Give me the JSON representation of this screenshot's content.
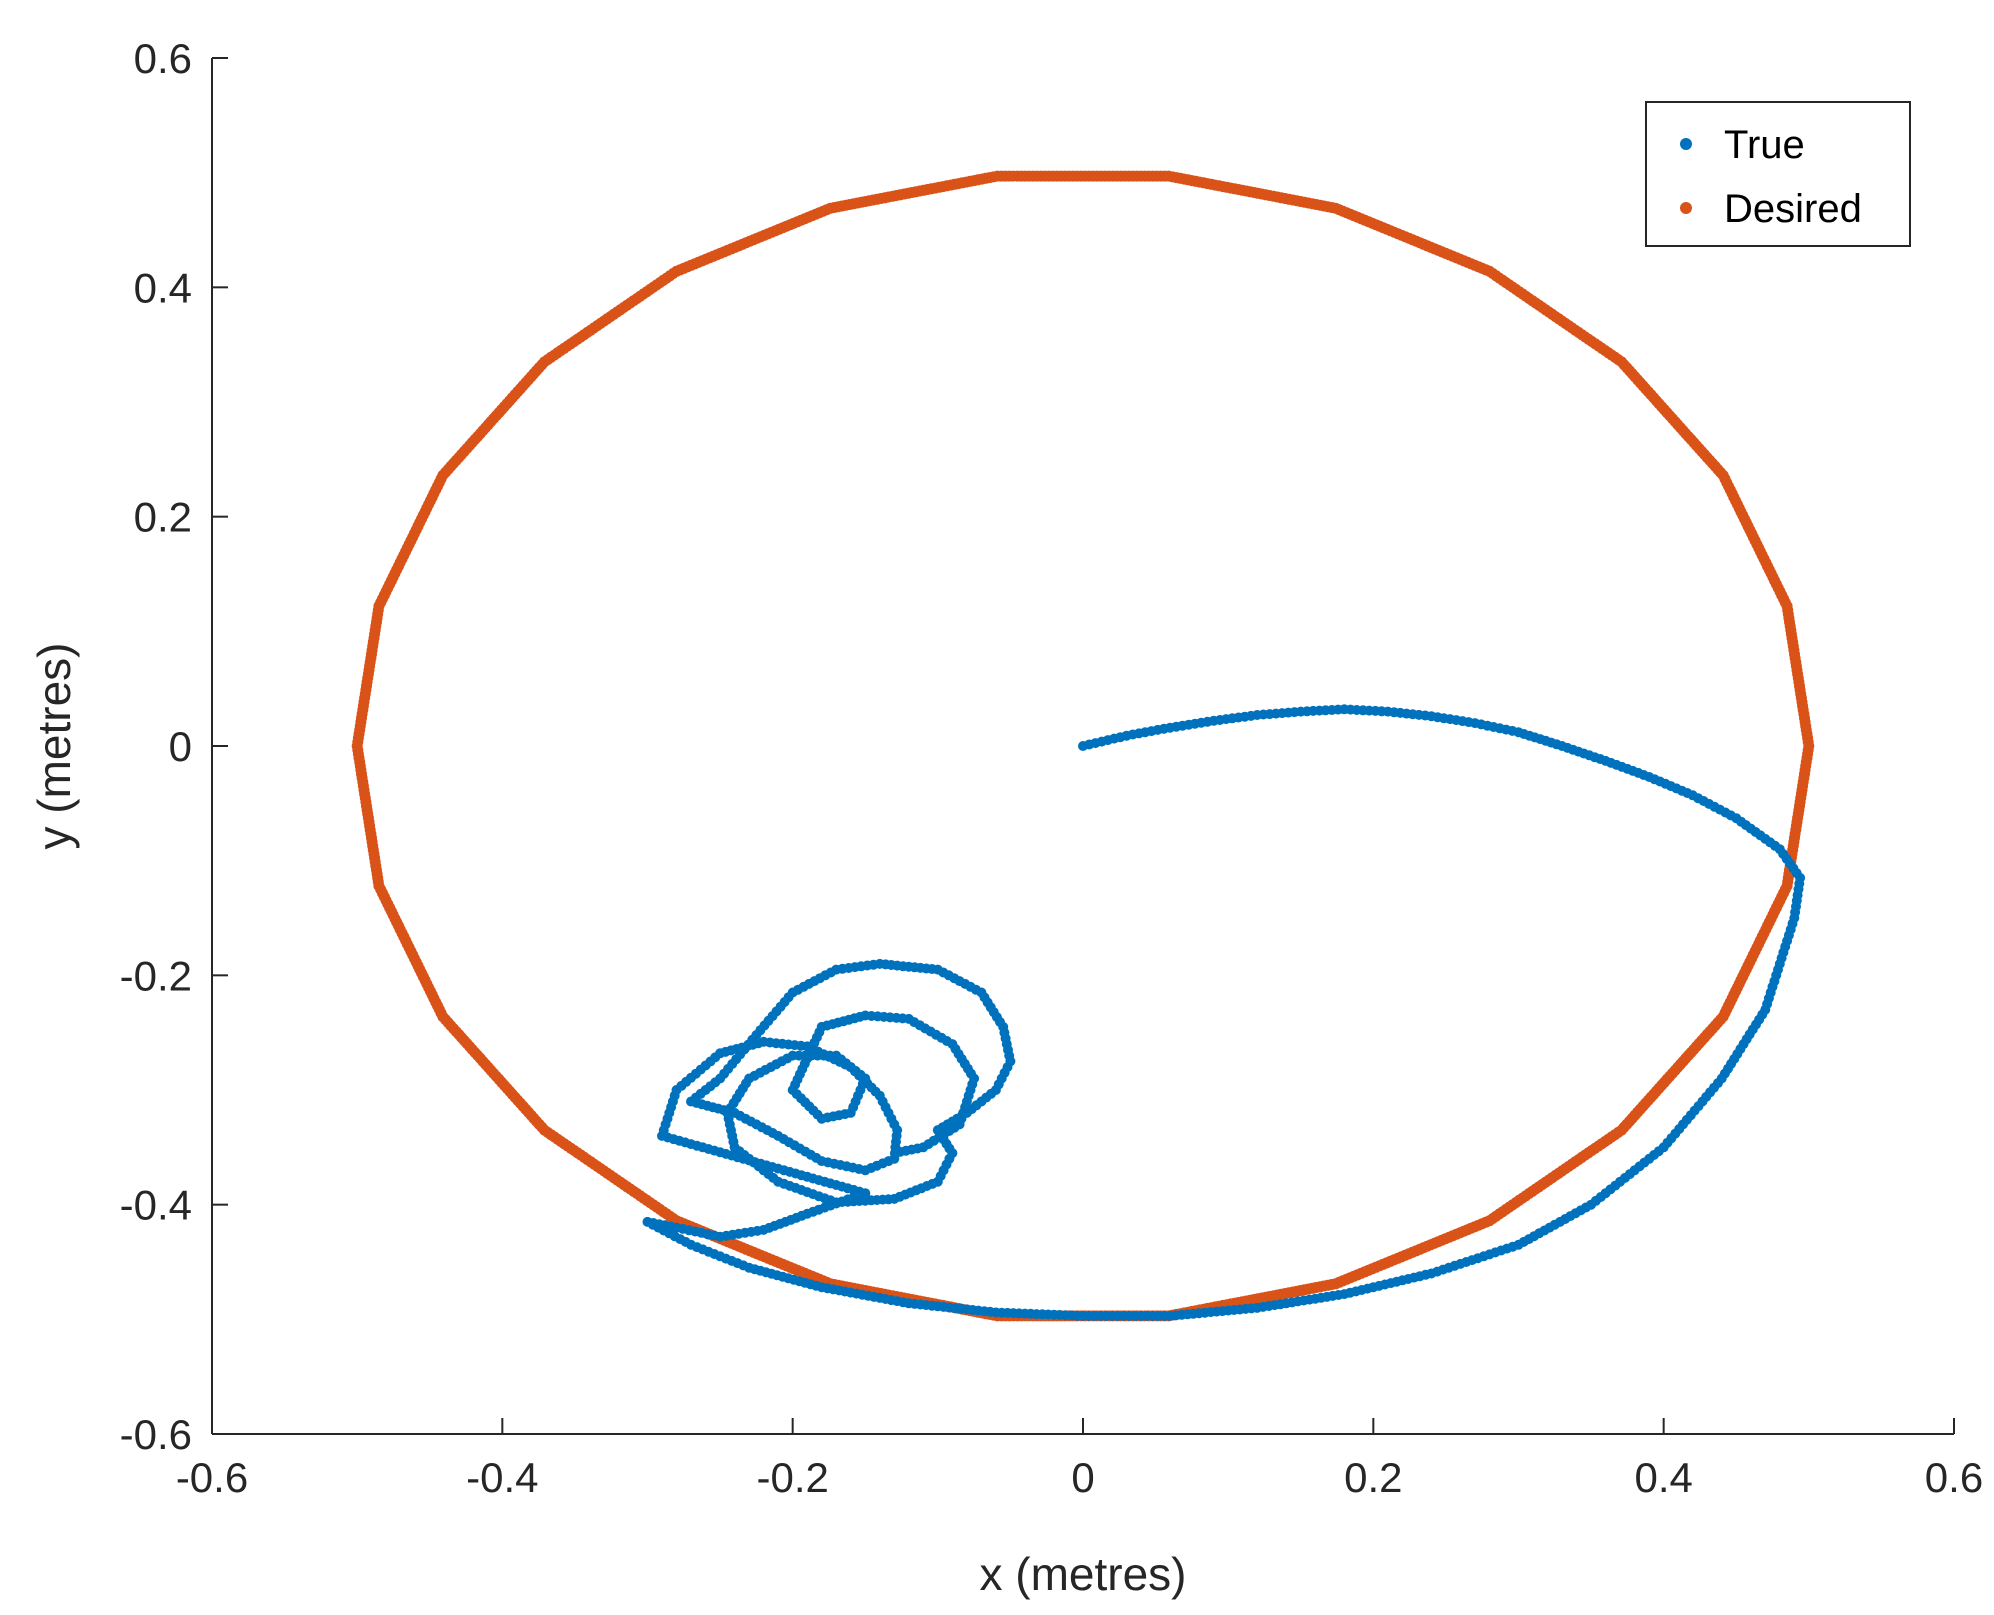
{
  "chart_data": {
    "type": "scatter",
    "title": "",
    "xlabel": "x (metres)",
    "ylabel": "y (metres)",
    "xlim": [
      -0.6,
      0.6
    ],
    "ylim": [
      -0.6,
      0.6
    ],
    "xticks": [
      -0.6,
      -0.4,
      -0.2,
      0,
      0.2,
      0.4,
      0.6
    ],
    "yticks": [
      -0.6,
      -0.4,
      -0.2,
      0,
      0.2,
      0.4,
      0.6
    ],
    "xtick_labels": [
      "-0.6",
      "-0.4",
      "-0.2",
      "0",
      "0.2",
      "0.4",
      "0.6"
    ],
    "ytick_labels": [
      "-0.6",
      "-0.4",
      "-0.2",
      "0",
      "0.2",
      "0.4",
      "0.6"
    ],
    "grid": false,
    "legend_position": "top-right",
    "series": [
      {
        "name": "True",
        "color": "#0072BD",
        "points": [
          [
            0.0,
            0.0
          ],
          [
            0.03,
            0.009
          ],
          [
            0.06,
            0.016
          ],
          [
            0.09,
            0.022
          ],
          [
            0.12,
            0.027
          ],
          [
            0.15,
            0.03
          ],
          [
            0.18,
            0.032
          ],
          [
            0.21,
            0.03
          ],
          [
            0.24,
            0.026
          ],
          [
            0.27,
            0.02
          ],
          [
            0.3,
            0.012
          ],
          [
            0.33,
            0.0
          ],
          [
            0.36,
            -0.013
          ],
          [
            0.39,
            -0.027
          ],
          [
            0.42,
            -0.043
          ],
          [
            0.45,
            -0.063
          ],
          [
            0.48,
            -0.09
          ],
          [
            0.494,
            -0.115
          ],
          [
            0.49,
            -0.15
          ],
          [
            0.47,
            -0.23
          ],
          [
            0.44,
            -0.29
          ],
          [
            0.4,
            -0.35
          ],
          [
            0.35,
            -0.4
          ],
          [
            0.3,
            -0.435
          ],
          [
            0.24,
            -0.46
          ],
          [
            0.18,
            -0.478
          ],
          [
            0.12,
            -0.49
          ],
          [
            0.06,
            -0.497
          ],
          [
            0.0,
            -0.497
          ],
          [
            -0.06,
            -0.494
          ],
          [
            -0.12,
            -0.486
          ],
          [
            -0.18,
            -0.472
          ],
          [
            -0.23,
            -0.455
          ],
          [
            -0.27,
            -0.435
          ],
          [
            -0.3,
            -0.415
          ],
          [
            -0.28,
            -0.42
          ],
          [
            -0.25,
            -0.428
          ],
          [
            -0.22,
            -0.422
          ],
          [
            -0.19,
            -0.408
          ],
          [
            -0.15,
            -0.39
          ],
          [
            -0.29,
            -0.34
          ],
          [
            -0.28,
            -0.3
          ],
          [
            -0.25,
            -0.268
          ],
          [
            -0.22,
            -0.258
          ],
          [
            -0.19,
            -0.262
          ],
          [
            -0.16,
            -0.28
          ],
          [
            -0.14,
            -0.305
          ],
          [
            -0.128,
            -0.335
          ],
          [
            -0.13,
            -0.36
          ],
          [
            -0.15,
            -0.37
          ],
          [
            -0.18,
            -0.362
          ],
          [
            -0.21,
            -0.34
          ],
          [
            -0.24,
            -0.32
          ],
          [
            -0.27,
            -0.31
          ],
          [
            -0.25,
            -0.29
          ],
          [
            -0.225,
            -0.252
          ],
          [
            -0.2,
            -0.215
          ],
          [
            -0.17,
            -0.195
          ],
          [
            -0.14,
            -0.19
          ],
          [
            -0.1,
            -0.195
          ],
          [
            -0.07,
            -0.215
          ],
          [
            -0.055,
            -0.245
          ],
          [
            -0.05,
            -0.275
          ],
          [
            -0.06,
            -0.3
          ],
          [
            -0.08,
            -0.32
          ],
          [
            -0.1,
            -0.335
          ],
          [
            -0.09,
            -0.355
          ],
          [
            -0.1,
            -0.38
          ],
          [
            -0.13,
            -0.395
          ],
          [
            -0.17,
            -0.398
          ],
          [
            -0.21,
            -0.38
          ],
          [
            -0.24,
            -0.35
          ],
          [
            -0.245,
            -0.32
          ],
          [
            -0.23,
            -0.29
          ],
          [
            -0.2,
            -0.27
          ],
          [
            -0.17,
            -0.27
          ],
          [
            -0.15,
            -0.29
          ],
          [
            -0.16,
            -0.32
          ],
          [
            -0.18,
            -0.325
          ],
          [
            -0.2,
            -0.3
          ],
          [
            -0.18,
            -0.245
          ],
          [
            -0.15,
            -0.235
          ],
          [
            -0.12,
            -0.238
          ],
          [
            -0.09,
            -0.26
          ],
          [
            -0.075,
            -0.29
          ],
          [
            -0.085,
            -0.33
          ],
          [
            -0.11,
            -0.35
          ],
          [
            -0.13,
            -0.355
          ]
        ]
      },
      {
        "name": "Desired",
        "color": "#D95319",
        "points": [
          [
            0.5,
            0.0
          ],
          [
            0.485,
            0.122
          ],
          [
            0.441,
            0.236
          ],
          [
            0.371,
            0.335
          ],
          [
            0.28,
            0.414
          ],
          [
            0.174,
            0.469
          ],
          [
            0.059,
            0.497
          ],
          [
            -0.059,
            0.497
          ],
          [
            -0.174,
            0.469
          ],
          [
            -0.28,
            0.414
          ],
          [
            -0.371,
            0.335
          ],
          [
            -0.441,
            0.236
          ],
          [
            -0.485,
            0.122
          ],
          [
            -0.5,
            0.0
          ],
          [
            -0.485,
            -0.122
          ],
          [
            -0.441,
            -0.236
          ],
          [
            -0.371,
            -0.335
          ],
          [
            -0.28,
            -0.414
          ],
          [
            -0.174,
            -0.469
          ],
          [
            -0.059,
            -0.497
          ],
          [
            0.059,
            -0.497
          ],
          [
            0.174,
            -0.469
          ],
          [
            0.28,
            -0.414
          ],
          [
            0.371,
            -0.335
          ],
          [
            0.441,
            -0.236
          ],
          [
            0.485,
            -0.122
          ]
        ]
      }
    ]
  }
}
